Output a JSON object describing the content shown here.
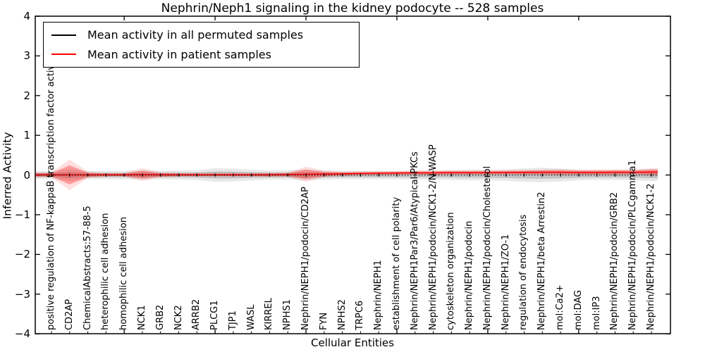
{
  "figure": {
    "title": "Nephrin/Neph1 signaling in the kidney podocyte -- 528 samples",
    "background_color": "#ffffff"
  },
  "axes": {
    "xlabel": "Cellular Entities",
    "ylabel": "Inferred Activity",
    "ytick_labels": [
      "4",
      "3",
      "2",
      "1",
      "0",
      "−1",
      "−2",
      "−3",
      "−4"
    ]
  },
  "legend": {
    "position": "upper left",
    "items": [
      {
        "label": "Mean activity in all permuted samples",
        "color": "#000000"
      },
      {
        "label": "Mean activity in patient samples",
        "color": "#ff0000"
      }
    ]
  },
  "chart_data": {
    "type": "line",
    "title": "Nephrin/Neph1 signaling in the kidney podocyte -- 528 samples",
    "xlabel": "Cellular Entities",
    "ylabel": "Inferred Activity",
    "ylim": [
      -4,
      4
    ],
    "yticks": [
      4,
      3,
      2,
      1,
      0,
      -1,
      -2,
      -3,
      -4
    ],
    "grid": false,
    "legend_position": "upper left",
    "categories": [
      "positive regulation of NF-kappaB transcription factor activity",
      "CD2AP",
      "ChemicalAbstracts:57-88-5",
      "heterophilic cell adhesion",
      "homophilic cell adhesion",
      "NCK1",
      "GRB2",
      "NCK2",
      "ARRB2",
      "PLCG1",
      "TJP1",
      "WASL",
      "KIRREL",
      "NPHS1",
      "Nephrin/NEPH1/podocin/CD2AP",
      "FYN",
      "NPHS2",
      "TRPC6",
      "Nephrin/NEPH1",
      "establishment of cell polarity",
      "Nephrin/NEPH1Par3/Par6/Atypical PKCs",
      "Nephrin/NEPH1/podocin/NCK1-2/N-WASP",
      "cytoskeleton organization",
      "Nephrin/NEPH1/podocin",
      "Nephrin/NEPH1/podocin/Cholesterol",
      "Nephrin/NEPH1/ZO-1",
      "regulation of endocytosis",
      "Nephrin/NEPH1/beta Arrestin2",
      "mol:Ca2+",
      "mol:DAG",
      "mol:IP3",
      "Nephrin/NEPH1/podocin/GRB2",
      "Nephrin/NEPH1/podocin/PLCgamma1",
      "Nephrin/NEPH1/podocin/NCK1-2"
    ],
    "series": [
      {
        "name": "Mean activity in all permuted samples",
        "color": "#000000",
        "line_style": "dotted",
        "values": [
          0,
          0,
          0,
          0,
          0,
          0,
          0,
          0,
          0,
          0,
          0,
          0,
          0,
          0,
          0,
          0,
          0,
          0,
          0,
          0,
          0,
          0,
          0,
          0,
          0,
          0,
          0,
          0,
          0,
          0,
          0,
          0,
          0,
          0
        ],
        "band_halfwidth": [
          0.05,
          0.08,
          0.055,
          0.055,
          0.055,
          0.06,
          0.055,
          0.06,
          0.065,
          0.09,
          0.085,
          0.07,
          0.06,
          0.06,
          0.07,
          0.06,
          0.055,
          0.055,
          0.055,
          0.055,
          0.06,
          0.06,
          0.065,
          0.07,
          0.07,
          0.075,
          0.09,
          0.095,
          0.085,
          0.07,
          0.065,
          0.065,
          0.07,
          0.08
        ]
      },
      {
        "name": "Mean activity in patient samples",
        "color": "#ff0000",
        "line_style": "solid",
        "values": [
          0.005,
          0.005,
          0.005,
          0.005,
          0.005,
          0.01,
          0.005,
          0.005,
          0.005,
          0.005,
          0.005,
          0.005,
          0.005,
          0.01,
          0.02,
          0.025,
          0.03,
          0.04,
          0.045,
          0.05,
          0.055,
          0.055,
          0.06,
          0.06,
          0.06,
          0.065,
          0.065,
          0.07,
          0.07,
          0.065,
          0.065,
          0.07,
          0.07,
          0.075
        ],
        "band_halfwidth": [
          0.04,
          0.24,
          0.05,
          0.03,
          0.03,
          0.1,
          0.04,
          0.03,
          0.03,
          0.03,
          0.03,
          0.03,
          0.035,
          0.035,
          0.12,
          0.05,
          0.035,
          0.03,
          0.03,
          0.03,
          0.03,
          0.035,
          0.035,
          0.035,
          0.035,
          0.035,
          0.04,
          0.045,
          0.05,
          0.04,
          0.045,
          0.045,
          0.04,
          0.06
        ]
      }
    ]
  }
}
